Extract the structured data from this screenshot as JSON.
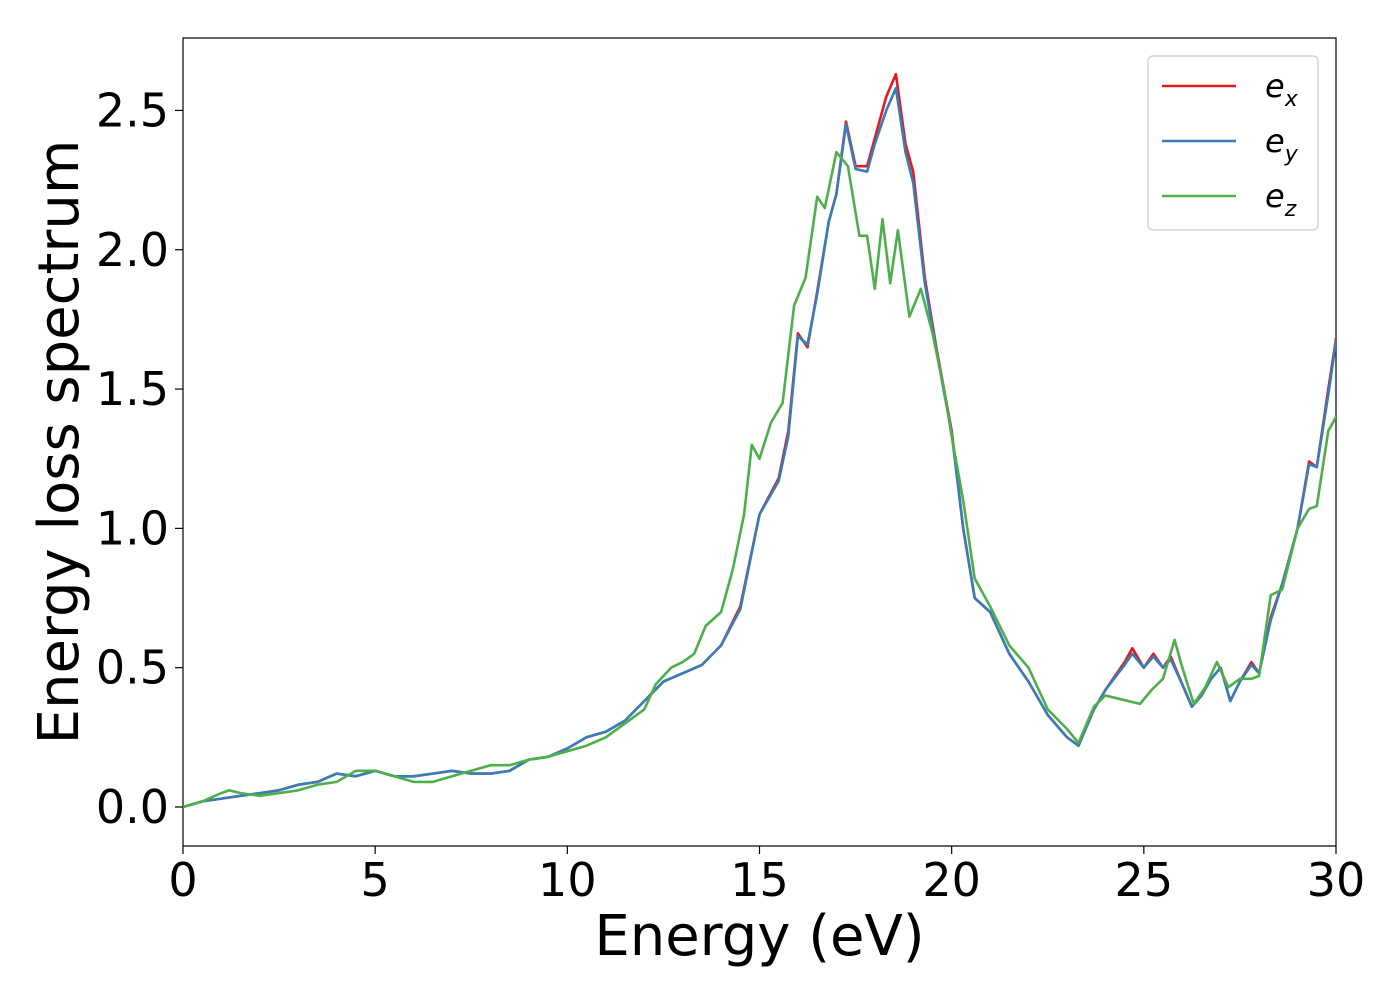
{
  "chart_data": {
    "type": "line",
    "title": "",
    "xlabel": "Energy (eV)",
    "ylabel": "Energy loss spectrum",
    "xlim": [
      0,
      30
    ],
    "ylim": [
      -0.14,
      2.76
    ],
    "xticks": [
      0,
      5,
      10,
      15,
      20,
      25,
      30
    ],
    "xtick_labels": [
      "0",
      "5",
      "10",
      "15",
      "20",
      "25",
      "30"
    ],
    "yticks": [
      0.0,
      0.5,
      1.0,
      1.5,
      2.0,
      2.5
    ],
    "ytick_labels": [
      "0.0",
      "0.5",
      "1.0",
      "1.5",
      "2.0",
      "2.5"
    ],
    "grid": false,
    "legend_position": "top-right",
    "series": [
      {
        "name": "e_x",
        "label_base": "e",
        "label_sub": "x",
        "color": "#e41a1c",
        "points": [
          [
            0,
            0.0
          ],
          [
            0.5,
            0.02
          ],
          [
            1,
            0.03
          ],
          [
            1.5,
            0.04
          ],
          [
            2,
            0.05
          ],
          [
            2.5,
            0.06
          ],
          [
            3,
            0.08
          ],
          [
            3.5,
            0.09
          ],
          [
            4,
            0.12
          ],
          [
            4.5,
            0.11
          ],
          [
            5,
            0.13
          ],
          [
            5.5,
            0.11
          ],
          [
            6,
            0.11
          ],
          [
            6.5,
            0.12
          ],
          [
            7,
            0.13
          ],
          [
            7.5,
            0.12
          ],
          [
            8,
            0.12
          ],
          [
            8.5,
            0.13
          ],
          [
            9,
            0.17
          ],
          [
            9.5,
            0.18
          ],
          [
            10,
            0.21
          ],
          [
            10.5,
            0.25
          ],
          [
            11,
            0.27
          ],
          [
            11.5,
            0.31
          ],
          [
            12,
            0.38
          ],
          [
            12.5,
            0.45
          ],
          [
            13,
            0.48
          ],
          [
            13.5,
            0.51
          ],
          [
            14,
            0.58
          ],
          [
            14.5,
            0.72
          ],
          [
            15,
            1.05
          ],
          [
            15.5,
            1.18
          ],
          [
            15.75,
            1.35
          ],
          [
            16,
            1.7
          ],
          [
            16.25,
            1.65
          ],
          [
            16.5,
            1.85
          ],
          [
            16.8,
            2.1
          ],
          [
            17,
            2.2
          ],
          [
            17.25,
            2.46
          ],
          [
            17.5,
            2.3
          ],
          [
            17.8,
            2.3
          ],
          [
            18,
            2.4
          ],
          [
            18.3,
            2.55
          ],
          [
            18.55,
            2.63
          ],
          [
            18.8,
            2.38
          ],
          [
            19,
            2.28
          ],
          [
            19.3,
            1.9
          ],
          [
            19.6,
            1.65
          ],
          [
            20,
            1.35
          ],
          [
            20.3,
            1.0
          ],
          [
            20.6,
            0.75
          ],
          [
            21,
            0.7
          ],
          [
            21.5,
            0.55
          ],
          [
            22,
            0.45
          ],
          [
            22.5,
            0.33
          ],
          [
            23,
            0.25
          ],
          [
            23.3,
            0.22
          ],
          [
            23.7,
            0.35
          ],
          [
            24,
            0.42
          ],
          [
            24.5,
            0.52
          ],
          [
            24.7,
            0.57
          ],
          [
            25,
            0.5
          ],
          [
            25.25,
            0.55
          ],
          [
            25.5,
            0.5
          ],
          [
            25.7,
            0.54
          ],
          [
            26,
            0.44
          ],
          [
            26.25,
            0.36
          ],
          [
            26.5,
            0.4
          ],
          [
            26.75,
            0.46
          ],
          [
            27,
            0.5
          ],
          [
            27.25,
            0.38
          ],
          [
            27.5,
            0.45
          ],
          [
            27.8,
            0.52
          ],
          [
            28,
            0.48
          ],
          [
            28.3,
            0.68
          ],
          [
            28.6,
            0.8
          ],
          [
            29,
            1.0
          ],
          [
            29.3,
            1.24
          ],
          [
            29.5,
            1.22
          ],
          [
            29.8,
            1.5
          ],
          [
            30,
            1.68
          ]
        ]
      },
      {
        "name": "e_y",
        "label_base": "e",
        "label_sub": "y",
        "color": "#377eb8",
        "points": [
          [
            0,
            0.0
          ],
          [
            0.5,
            0.02
          ],
          [
            1,
            0.03
          ],
          [
            1.5,
            0.04
          ],
          [
            2,
            0.05
          ],
          [
            2.5,
            0.06
          ],
          [
            3,
            0.08
          ],
          [
            3.5,
            0.09
          ],
          [
            4,
            0.12
          ],
          [
            4.5,
            0.11
          ],
          [
            5,
            0.13
          ],
          [
            5.5,
            0.11
          ],
          [
            6,
            0.11
          ],
          [
            6.5,
            0.12
          ],
          [
            7,
            0.13
          ],
          [
            7.5,
            0.12
          ],
          [
            8,
            0.12
          ],
          [
            8.5,
            0.13
          ],
          [
            9,
            0.17
          ],
          [
            9.5,
            0.18
          ],
          [
            10,
            0.21
          ],
          [
            10.5,
            0.25
          ],
          [
            11,
            0.27
          ],
          [
            11.5,
            0.31
          ],
          [
            12,
            0.38
          ],
          [
            12.5,
            0.45
          ],
          [
            13,
            0.48
          ],
          [
            13.5,
            0.51
          ],
          [
            14,
            0.58
          ],
          [
            14.5,
            0.71
          ],
          [
            15,
            1.05
          ],
          [
            15.5,
            1.17
          ],
          [
            15.75,
            1.33
          ],
          [
            16,
            1.69
          ],
          [
            16.25,
            1.66
          ],
          [
            16.5,
            1.84
          ],
          [
            16.8,
            2.1
          ],
          [
            17,
            2.2
          ],
          [
            17.25,
            2.45
          ],
          [
            17.5,
            2.29
          ],
          [
            17.8,
            2.28
          ],
          [
            18,
            2.38
          ],
          [
            18.3,
            2.5
          ],
          [
            18.55,
            2.58
          ],
          [
            18.8,
            2.35
          ],
          [
            19,
            2.24
          ],
          [
            19.3,
            1.88
          ],
          [
            19.6,
            1.64
          ],
          [
            20,
            1.34
          ],
          [
            20.3,
            1.0
          ],
          [
            20.6,
            0.75
          ],
          [
            21,
            0.7
          ],
          [
            21.5,
            0.55
          ],
          [
            22,
            0.45
          ],
          [
            22.5,
            0.33
          ],
          [
            23,
            0.25
          ],
          [
            23.3,
            0.22
          ],
          [
            23.7,
            0.35
          ],
          [
            24,
            0.42
          ],
          [
            24.5,
            0.51
          ],
          [
            24.7,
            0.55
          ],
          [
            25,
            0.5
          ],
          [
            25.25,
            0.54
          ],
          [
            25.5,
            0.5
          ],
          [
            25.7,
            0.53
          ],
          [
            26,
            0.44
          ],
          [
            26.25,
            0.36
          ],
          [
            26.5,
            0.4
          ],
          [
            26.75,
            0.46
          ],
          [
            27,
            0.5
          ],
          [
            27.25,
            0.38
          ],
          [
            27.5,
            0.45
          ],
          [
            27.8,
            0.51
          ],
          [
            28,
            0.48
          ],
          [
            28.3,
            0.67
          ],
          [
            28.6,
            0.8
          ],
          [
            29,
            1.0
          ],
          [
            29.3,
            1.23
          ],
          [
            29.5,
            1.22
          ],
          [
            29.8,
            1.48
          ],
          [
            30,
            1.67
          ]
        ]
      },
      {
        "name": "e_z",
        "label_base": "e",
        "label_sub": "z",
        "color": "#4daf4a",
        "points": [
          [
            0,
            0.0
          ],
          [
            0.5,
            0.02
          ],
          [
            1,
            0.05
          ],
          [
            1.2,
            0.06
          ],
          [
            1.5,
            0.05
          ],
          [
            2,
            0.04
          ],
          [
            2.5,
            0.05
          ],
          [
            3,
            0.06
          ],
          [
            3.5,
            0.08
          ],
          [
            4,
            0.09
          ],
          [
            4.5,
            0.13
          ],
          [
            5,
            0.13
          ],
          [
            5.5,
            0.11
          ],
          [
            6,
            0.09
          ],
          [
            6.5,
            0.09
          ],
          [
            7,
            0.11
          ],
          [
            7.5,
            0.13
          ],
          [
            8,
            0.15
          ],
          [
            8.5,
            0.15
          ],
          [
            9,
            0.17
          ],
          [
            9.5,
            0.18
          ],
          [
            10,
            0.2
          ],
          [
            10.5,
            0.22
          ],
          [
            11,
            0.25
          ],
          [
            11.5,
            0.3
          ],
          [
            12,
            0.35
          ],
          [
            12.3,
            0.44
          ],
          [
            12.7,
            0.5
          ],
          [
            13,
            0.52
          ],
          [
            13.3,
            0.55
          ],
          [
            13.6,
            0.65
          ],
          [
            14,
            0.7
          ],
          [
            14.3,
            0.85
          ],
          [
            14.6,
            1.05
          ],
          [
            14.8,
            1.3
          ],
          [
            15,
            1.25
          ],
          [
            15.3,
            1.38
          ],
          [
            15.6,
            1.45
          ],
          [
            15.9,
            1.8
          ],
          [
            16.2,
            1.9
          ],
          [
            16.5,
            2.19
          ],
          [
            16.7,
            2.15
          ],
          [
            17,
            2.35
          ],
          [
            17.3,
            2.3
          ],
          [
            17.6,
            2.05
          ],
          [
            17.8,
            2.05
          ],
          [
            18,
            1.86
          ],
          [
            18.2,
            2.11
          ],
          [
            18.4,
            1.88
          ],
          [
            18.6,
            2.07
          ],
          [
            18.9,
            1.76
          ],
          [
            19.2,
            1.86
          ],
          [
            19.5,
            1.7
          ],
          [
            19.8,
            1.5
          ],
          [
            20,
            1.33
          ],
          [
            20.3,
            1.1
          ],
          [
            20.6,
            0.82
          ],
          [
            21,
            0.72
          ],
          [
            21.5,
            0.58
          ],
          [
            22,
            0.5
          ],
          [
            22.5,
            0.35
          ],
          [
            23,
            0.28
          ],
          [
            23.3,
            0.23
          ],
          [
            23.7,
            0.36
          ],
          [
            24,
            0.4
          ],
          [
            24.3,
            0.39
          ],
          [
            24.6,
            0.38
          ],
          [
            24.9,
            0.37
          ],
          [
            25.2,
            0.42
          ],
          [
            25.5,
            0.46
          ],
          [
            25.8,
            0.6
          ],
          [
            26,
            0.5
          ],
          [
            26.3,
            0.37
          ],
          [
            26.6,
            0.43
          ],
          [
            26.9,
            0.52
          ],
          [
            27.2,
            0.43
          ],
          [
            27.5,
            0.46
          ],
          [
            27.8,
            0.46
          ],
          [
            28,
            0.47
          ],
          [
            28.3,
            0.76
          ],
          [
            28.6,
            0.78
          ],
          [
            29,
            1.0
          ],
          [
            29.3,
            1.07
          ],
          [
            29.5,
            1.08
          ],
          [
            29.8,
            1.35
          ],
          [
            30,
            1.4
          ]
        ]
      }
    ]
  }
}
